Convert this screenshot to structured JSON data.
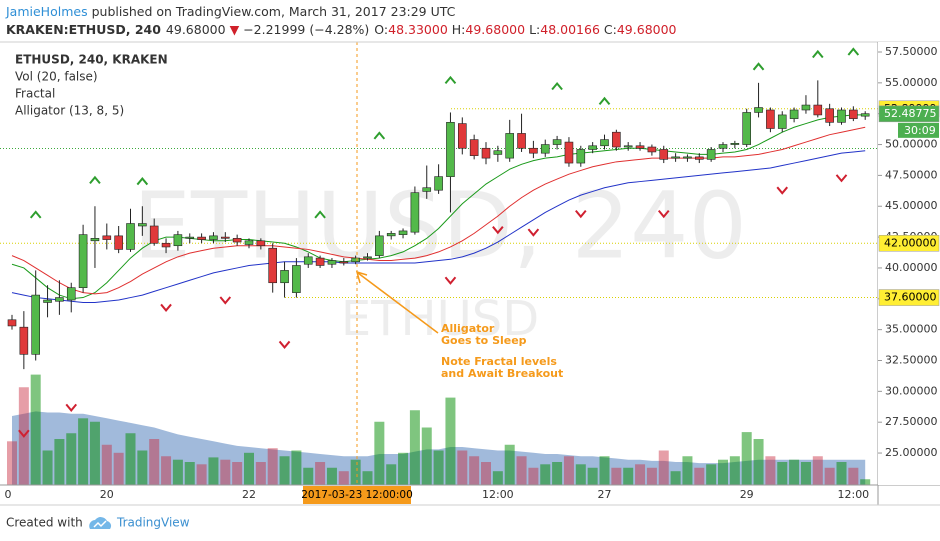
{
  "header": {
    "author": "JamieHolmes",
    "byline": "published on TradingView.com, March 31, 2017 23:29 UTC",
    "symbol": "KRAKEN:ETHUSD, 240",
    "last": "49.68000",
    "arrow": "▼",
    "change": "−2.21999 (−4.28%)",
    "ohlc": [
      {
        "key": "O:",
        "value": "48.33000"
      },
      {
        "key": "H:",
        "value": "49.68000"
      },
      {
        "key": "L:",
        "value": "48.00166"
      },
      {
        "key": "C:",
        "value": "49.68000"
      }
    ]
  },
  "footer": {
    "created": "Created with",
    "brand": "TradingView"
  },
  "chart_data": {
    "type": "candlestick",
    "legend": [
      "ETHUSD, 240, KRAKEN",
      "Vol (20, false)",
      "Fractal",
      "Alligator (13, 8, 5)"
    ],
    "watermark": [
      "ETHUSD, 240",
      "ETHUSD"
    ],
    "categories": [
      "0",
      null,
      null,
      null,
      null,
      null,
      null,
      null,
      "20",
      null,
      null,
      null,
      null,
      null,
      null,
      null,
      null,
      null,
      null,
      null,
      "22",
      null,
      null,
      null,
      null,
      null,
      null,
      null,
      null,
      null,
      null,
      null,
      null,
      null,
      null,
      null,
      null,
      null,
      null,
      null,
      null,
      "12:00",
      null,
      null,
      null,
      null,
      null,
      null,
      null,
      null,
      "27",
      null,
      null,
      null,
      null,
      null,
      null,
      null,
      null,
      null,
      null,
      null,
      "29",
      null,
      null,
      null,
      null,
      null,
      null,
      null,
      null,
      "12:00",
      null
    ],
    "open": [
      35.8,
      35.2,
      33.0,
      37.2,
      37.3,
      37.4,
      38.4,
      42.2,
      42.6,
      42.6,
      41.5,
      43.4,
      43.4,
      42.0,
      41.8,
      42.4,
      42.5,
      42.3,
      42.5,
      42.4,
      41.9,
      42.2,
      41.6,
      38.8,
      38.0,
      40.3,
      40.8,
      40.3,
      40.5,
      40.5,
      40.8,
      41.0,
      42.6,
      42.7,
      42.9,
      46.2,
      46.3,
      47.4,
      51.7,
      50.4,
      49.7,
      49.2,
      48.9,
      50.9,
      49.7,
      49.3,
      50.0,
      50.2,
      48.5,
      49.6,
      49.9,
      51.0,
      49.8,
      49.9,
      49.8,
      49.6,
      48.9,
      48.9,
      49.0,
      48.8,
      49.7,
      50.0,
      50.0,
      52.6,
      52.8,
      51.3,
      52.1,
      52.8,
      53.2,
      52.9,
      51.8,
      52.8,
      52.3
    ],
    "high": [
      36.2,
      36.5,
      39.8,
      38.6,
      39.0,
      38.8,
      43.5,
      45.0,
      43.6,
      43.4,
      44.8,
      45.0,
      44.0,
      42.4,
      43.0,
      42.8,
      42.8,
      42.9,
      42.9,
      42.7,
      42.4,
      42.4,
      42.0,
      40.5,
      40.8,
      41.2,
      41.0,
      40.8,
      40.8,
      41.0,
      41.2,
      43.0,
      43.0,
      43.2,
      46.6,
      48.3,
      48.4,
      52.6,
      52.2,
      50.8,
      50.2,
      49.9,
      52.0,
      52.5,
      50.3,
      50.4,
      50.7,
      50.6,
      49.9,
      50.2,
      50.8,
      51.2,
      50.2,
      50.2,
      50.0,
      49.9,
      49.3,
      49.2,
      49.3,
      49.8,
      50.2,
      50.3,
      52.9,
      55.0,
      53.0,
      52.7,
      53.0,
      54.0,
      55.2,
      53.3,
      53.0,
      53.1,
      52.7
    ],
    "low": [
      35.0,
      31.8,
      32.5,
      36.0,
      36.2,
      36.4,
      38.0,
      40.0,
      41.5,
      41.2,
      41.3,
      42.6,
      41.8,
      41.2,
      41.4,
      42.0,
      42.0,
      42.0,
      42.1,
      41.8,
      41.6,
      41.5,
      38.0,
      37.6,
      37.6,
      40.0,
      40.0,
      40.0,
      40.2,
      40.3,
      40.6,
      40.8,
      42.3,
      42.4,
      42.7,
      45.6,
      46.0,
      44.5,
      49.2,
      48.8,
      48.4,
      48.6,
      48.6,
      49.4,
      48.9,
      49.0,
      49.6,
      48.2,
      48.2,
      49.3,
      49.6,
      49.5,
      49.5,
      49.5,
      49.1,
      48.5,
      48.6,
      48.6,
      48.5,
      48.6,
      49.4,
      49.7,
      49.8,
      52.2,
      51.0,
      51.0,
      51.8,
      52.5,
      52.2,
      51.5,
      51.6,
      51.9,
      52.0
    ],
    "close": [
      35.3,
      33.0,
      37.8,
      37.4,
      37.6,
      38.4,
      42.7,
      42.4,
      42.3,
      41.5,
      43.6,
      43.6,
      42.0,
      41.7,
      42.7,
      42.5,
      42.3,
      42.6,
      42.4,
      42.1,
      42.2,
      41.8,
      38.8,
      39.8,
      40.2,
      40.9,
      40.2,
      40.6,
      40.4,
      40.8,
      40.9,
      42.6,
      42.8,
      43.0,
      46.1,
      46.5,
      47.4,
      51.8,
      49.7,
      49.1,
      48.9,
      49.5,
      50.9,
      49.7,
      49.3,
      50.0,
      50.4,
      48.5,
      49.6,
      49.9,
      50.4,
      49.8,
      49.9,
      49.7,
      49.4,
      48.8,
      49.0,
      49.0,
      48.8,
      49.6,
      50.0,
      50.1,
      52.6,
      53.0,
      51.3,
      52.4,
      52.8,
      53.2,
      52.4,
      51.8,
      52.8,
      52.1,
      52.5
    ],
    "up_color": "#53b94a",
    "down_color": "#e0393a",
    "alligator": [
      {
        "color": "#1a9a1a",
        "values": [
          40.3,
          40.0,
          39.2,
          38.4,
          37.8,
          37.5,
          37.6,
          38.0,
          38.8,
          39.8,
          40.8,
          41.6,
          42.2,
          42.5,
          42.5,
          42.4,
          42.3,
          42.2,
          42.2,
          42.3,
          42.3,
          42.2,
          42.1,
          42.0,
          41.7,
          41.3,
          40.8,
          40.6,
          40.5,
          40.6,
          40.7,
          40.8,
          41.0,
          41.3,
          41.8,
          42.4,
          43.2,
          44.2,
          45.2,
          46.0,
          46.8,
          47.4,
          48.0,
          48.4,
          48.7,
          48.9,
          49.0,
          49.2,
          49.3,
          49.4,
          49.5,
          49.6,
          49.7,
          49.7,
          49.6,
          49.5,
          49.4,
          49.3,
          49.2,
          49.2,
          49.3,
          49.4,
          49.6,
          50.0,
          50.5,
          51.0,
          51.4,
          51.7,
          52.0,
          52.2,
          52.3,
          52.4,
          52.4
        ]
      },
      {
        "color": "#e03030",
        "values": [
          41.0,
          40.6,
          40.0,
          39.4,
          38.8,
          38.3,
          38.0,
          37.9,
          38.0,
          38.4,
          38.9,
          39.5,
          40.0,
          40.5,
          40.9,
          41.2,
          41.4,
          41.6,
          41.7,
          41.8,
          41.8,
          41.8,
          41.8,
          41.7,
          41.6,
          41.5,
          41.3,
          41.1,
          40.9,
          40.8,
          40.7,
          40.6,
          40.6,
          40.7,
          40.8,
          41.0,
          41.3,
          41.7,
          42.2,
          42.8,
          43.5,
          44.2,
          45.0,
          45.7,
          46.3,
          46.8,
          47.2,
          47.6,
          47.9,
          48.2,
          48.4,
          48.6,
          48.7,
          48.8,
          48.9,
          48.9,
          48.9,
          48.9,
          48.9,
          48.9,
          49.0,
          49.0,
          49.1,
          49.2,
          49.4,
          49.6,
          49.9,
          50.2,
          50.5,
          50.8,
          51.0,
          51.2,
          51.4
        ]
      },
      {
        "color": "#2233c8",
        "values": [
          38.0,
          37.8,
          37.6,
          37.5,
          37.4,
          37.3,
          37.2,
          37.2,
          37.3,
          37.4,
          37.6,
          37.8,
          38.1,
          38.4,
          38.7,
          39.0,
          39.3,
          39.6,
          39.8,
          40.0,
          40.2,
          40.3,
          40.4,
          40.5,
          40.5,
          40.5,
          40.5,
          40.5,
          40.4,
          40.4,
          40.4,
          40.4,
          40.4,
          40.4,
          40.4,
          40.5,
          40.6,
          40.7,
          40.9,
          41.2,
          41.6,
          42.1,
          42.7,
          43.3,
          43.9,
          44.5,
          45.0,
          45.5,
          45.9,
          46.2,
          46.5,
          46.7,
          46.9,
          47.0,
          47.1,
          47.2,
          47.3,
          47.4,
          47.5,
          47.6,
          47.7,
          47.8,
          47.9,
          48.0,
          48.1,
          48.3,
          48.5,
          48.7,
          48.9,
          49.1,
          49.3,
          49.4,
          49.5
        ]
      }
    ],
    "volume": {
      "vlim": [
        0,
        100
      ],
      "up_color": "rgba(0,140,0,0.5)",
      "down_color": "rgba(200,40,60,0.45)",
      "ma_color": "rgba(30,90,170,0.42)",
      "values": [
        38,
        85,
        96,
        30,
        40,
        45,
        58,
        55,
        35,
        28,
        45,
        30,
        40,
        25,
        22,
        20,
        18,
        24,
        22,
        20,
        28,
        20,
        32,
        25,
        30,
        15,
        20,
        15,
        12,
        22,
        12,
        55,
        18,
        28,
        65,
        50,
        30,
        76,
        30,
        25,
        20,
        12,
        35,
        25,
        15,
        18,
        20,
        25,
        18,
        15,
        25,
        15,
        15,
        18,
        15,
        30,
        12,
        25,
        15,
        18,
        22,
        25,
        46,
        40,
        25,
        20,
        22,
        20,
        25,
        15,
        20,
        15,
        5
      ],
      "ma": [
        60,
        62,
        64,
        63,
        63,
        62,
        62,
        60,
        58,
        56,
        54,
        52,
        50,
        47,
        44,
        42,
        40,
        38,
        36,
        34,
        33,
        32,
        31,
        30,
        29,
        28,
        27,
        26,
        25,
        25,
        25,
        27,
        27,
        27,
        29,
        31,
        31,
        33,
        33,
        32,
        31,
        30,
        30,
        29,
        28,
        27,
        27,
        26,
        25,
        25,
        24,
        23,
        22,
        22,
        21,
        21,
        20,
        20,
        19,
        19,
        19,
        20,
        21,
        22,
        22,
        22,
        22,
        22,
        22,
        22,
        22,
        22,
        22
      ]
    },
    "fractal_up": {
      "color": "#2e9e2e",
      "values": [
        null,
        null,
        44.3,
        null,
        null,
        null,
        null,
        47.1,
        null,
        null,
        null,
        47.0,
        null,
        null,
        null,
        null,
        null,
        null,
        null,
        null,
        null,
        null,
        null,
        null,
        null,
        null,
        44.3,
        null,
        null,
        null,
        null,
        50.7,
        null,
        null,
        null,
        null,
        null,
        55.2,
        null,
        null,
        null,
        null,
        null,
        null,
        null,
        null,
        54.7,
        null,
        null,
        null,
        53.5,
        null,
        null,
        null,
        null,
        null,
        null,
        null,
        null,
        null,
        null,
        null,
        null,
        56.3,
        null,
        null,
        null,
        null,
        57.3,
        null,
        null,
        57.5,
        null
      ]
    },
    "fractal_down": {
      "color": "#d02030",
      "values": [
        null,
        26.6,
        null,
        null,
        null,
        28.7,
        null,
        null,
        null,
        null,
        null,
        null,
        null,
        36.8,
        null,
        null,
        null,
        null,
        37.4,
        null,
        null,
        null,
        null,
        33.8,
        null,
        null,
        null,
        null,
        null,
        null,
        null,
        null,
        null,
        null,
        null,
        null,
        null,
        39.0,
        null,
        null,
        null,
        43.1,
        null,
        null,
        42.9,
        null,
        null,
        null,
        44.4,
        null,
        null,
        null,
        null,
        null,
        null,
        44.4,
        null,
        null,
        null,
        null,
        null,
        null,
        null,
        null,
        null,
        46.3,
        null,
        null,
        null,
        null,
        47.3,
        null,
        null
      ]
    },
    "ylim": [
      22.41,
      58.31
    ],
    "yticks": [
      {
        "value": 25,
        "label": "25.00000"
      },
      {
        "value": 27.5,
        "label": "27.50000"
      },
      {
        "value": 30,
        "label": "30.00000"
      },
      {
        "value": 32.5,
        "label": "32.50000"
      },
      {
        "value": 35,
        "label": "35.00000"
      },
      {
        "value": 37.5,
        "label": "37.50000"
      },
      {
        "value": 40,
        "label": "40.00000"
      },
      {
        "value": 42.5,
        "label": "42.50000"
      },
      {
        "value": 45,
        "label": "45.00000"
      },
      {
        "value": 47.5,
        "label": "47.50000"
      },
      {
        "value": 50,
        "label": "50.00000"
      },
      {
        "value": 52.5,
        "label": "52.50000"
      },
      {
        "value": 55,
        "label": "55.00000"
      },
      {
        "value": 57.5,
        "label": "57.50000"
      }
    ],
    "grid": false,
    "levels_color": "#ffee33",
    "levels": [
      {
        "value": 52.89999,
        "label": "52.89999"
      },
      {
        "value": 42.0,
        "label": "42.00000"
      },
      {
        "value": 37.6,
        "label": "37.60000"
      }
    ],
    "close_line": {
      "value": 49.68,
      "color": "#3caa3c"
    },
    "last_price": {
      "value": 52.48775,
      "label": "52.48775",
      "countdown": "30:09",
      "color": "#4caf50"
    },
    "crosshair_label": "2017-03-23 12:00:00",
    "annotation_color": "#f59a1b",
    "annotations": [
      "Alligator",
      "Goes to Sleep",
      "Note Fractal levels",
      "and Await Breakout"
    ]
  }
}
